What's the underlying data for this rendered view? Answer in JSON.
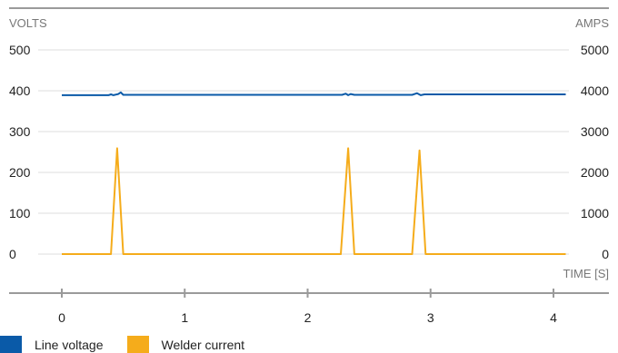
{
  "chart_data": {
    "type": "line",
    "left_axis_label": "VOLTS",
    "right_axis_label": "AMPS",
    "x_axis_label": "TIME [S]",
    "left_ylim": [
      0,
      500
    ],
    "right_ylim": [
      0,
      5000
    ],
    "left_ticks": [
      "0",
      "100",
      "200",
      "300",
      "400",
      "500"
    ],
    "right_ticks": [
      "0",
      "1000",
      "2000",
      "3000",
      "4000",
      "5000"
    ],
    "xlim": [
      0,
      4.1
    ],
    "x_ticks": [
      "0",
      "1",
      "2",
      "3",
      "4"
    ],
    "grid": true,
    "legend_placement": "bottom-left",
    "series": [
      {
        "name": "Line voltage",
        "axis": "left",
        "color": "#0a5aa8",
        "points": [
          [
            0,
            389
          ],
          [
            0.38,
            389
          ],
          [
            0.4,
            391
          ],
          [
            0.42,
            389
          ],
          [
            0.46,
            392
          ],
          [
            0.48,
            396
          ],
          [
            0.5,
            390
          ],
          [
            0.55,
            390
          ],
          [
            2.28,
            390
          ],
          [
            2.31,
            393
          ],
          [
            2.33,
            389
          ],
          [
            2.35,
            392
          ],
          [
            2.38,
            390
          ],
          [
            2.85,
            390
          ],
          [
            2.89,
            394
          ],
          [
            2.92,
            389
          ],
          [
            2.95,
            391
          ],
          [
            4.1,
            391
          ]
        ]
      },
      {
        "name": "Welder current",
        "axis": "right",
        "color": "#f5ac1b",
        "points": [
          [
            0,
            0
          ],
          [
            0.4,
            0
          ],
          [
            0.45,
            2590
          ],
          [
            0.5,
            0
          ],
          [
            2.27,
            0
          ],
          [
            2.33,
            2590
          ],
          [
            2.38,
            0
          ],
          [
            2.85,
            0
          ],
          [
            2.91,
            2540
          ],
          [
            2.96,
            0
          ],
          [
            4.1,
            0
          ]
        ]
      }
    ]
  }
}
